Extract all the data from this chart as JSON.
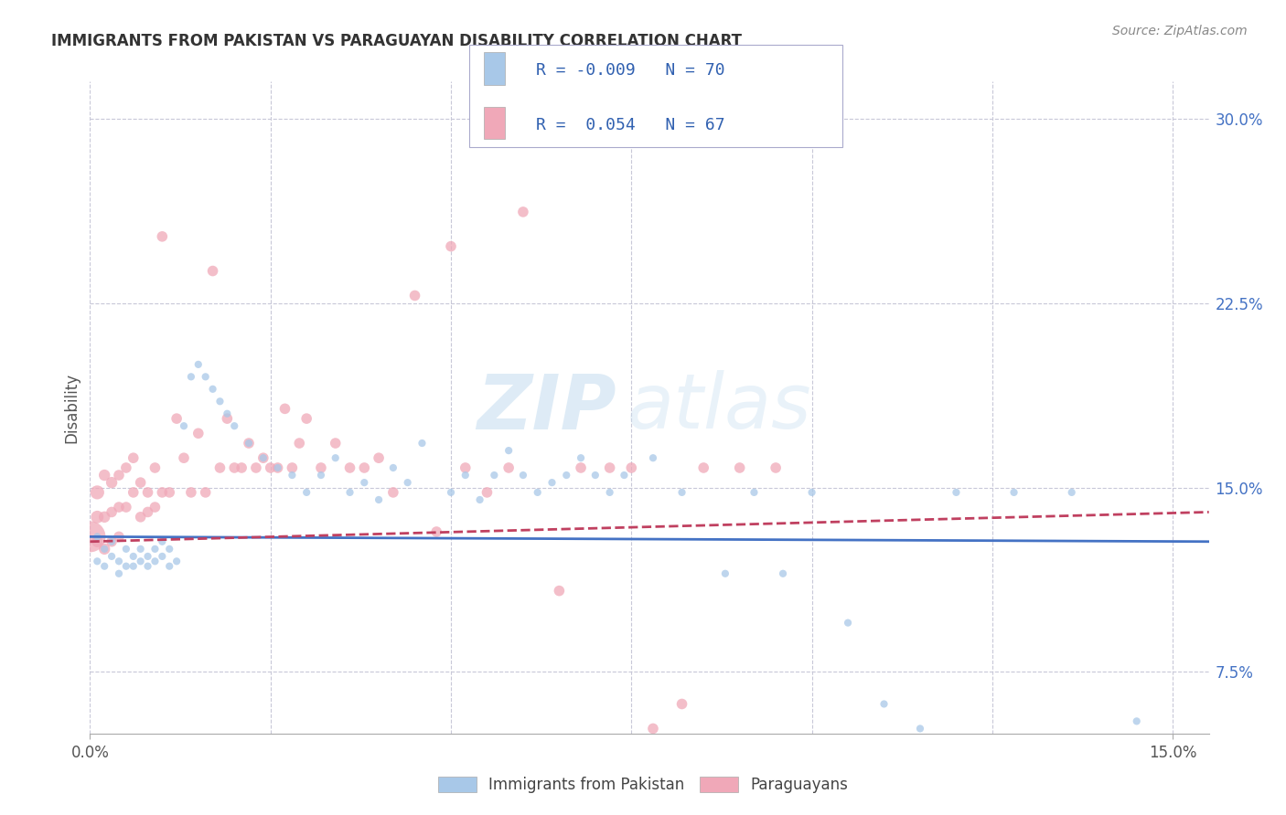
{
  "title": "IMMIGRANTS FROM PAKISTAN VS PARAGUAYAN DISABILITY CORRELATION CHART",
  "source": "Source: ZipAtlas.com",
  "ylabel": "Disability",
  "legend_blue_label": "Immigrants from Pakistan",
  "legend_pink_label": "Paraguayans",
  "r_blue": "-0.009",
  "n_blue": "70",
  "r_pink": "0.054",
  "n_pink": "67",
  "watermark_zip": "ZIP",
  "watermark_atlas": "atlas",
  "blue_color": "#a8c8e8",
  "pink_color": "#f0a8b8",
  "blue_line_color": "#4472c4",
  "pink_line_color": "#c04060",
  "background_color": "#ffffff",
  "grid_color": "#c8c8d8",
  "xlim": [
    0.0,
    0.155
  ],
  "ylim": [
    0.05,
    0.315
  ],
  "yticks": [
    0.075,
    0.15,
    0.225,
    0.3
  ],
  "yticklabels": [
    "7.5%",
    "15.0%",
    "22.5%",
    "30.0%"
  ],
  "xticks": [
    0.0,
    0.15
  ],
  "xticklabels": [
    "0.0%",
    "15.0%"
  ],
  "blue_scatter_x": [
    0.001,
    0.001,
    0.002,
    0.002,
    0.003,
    0.003,
    0.004,
    0.004,
    0.005,
    0.005,
    0.006,
    0.006,
    0.007,
    0.007,
    0.008,
    0.008,
    0.009,
    0.009,
    0.01,
    0.01,
    0.011,
    0.011,
    0.012,
    0.013,
    0.014,
    0.015,
    0.016,
    0.017,
    0.018,
    0.019,
    0.02,
    0.022,
    0.024,
    0.026,
    0.028,
    0.03,
    0.032,
    0.034,
    0.036,
    0.038,
    0.04,
    0.042,
    0.044,
    0.046,
    0.05,
    0.052,
    0.054,
    0.056,
    0.058,
    0.06,
    0.062,
    0.064,
    0.066,
    0.068,
    0.07,
    0.072,
    0.074,
    0.078,
    0.082,
    0.088,
    0.092,
    0.096,
    0.1,
    0.105,
    0.11,
    0.115,
    0.12,
    0.128,
    0.136,
    0.145
  ],
  "blue_scatter_y": [
    0.13,
    0.12,
    0.125,
    0.118,
    0.122,
    0.128,
    0.12,
    0.115,
    0.118,
    0.125,
    0.122,
    0.118,
    0.125,
    0.12,
    0.122,
    0.118,
    0.125,
    0.12,
    0.128,
    0.122,
    0.118,
    0.125,
    0.12,
    0.175,
    0.195,
    0.2,
    0.195,
    0.19,
    0.185,
    0.18,
    0.175,
    0.168,
    0.162,
    0.158,
    0.155,
    0.148,
    0.155,
    0.162,
    0.148,
    0.152,
    0.145,
    0.158,
    0.152,
    0.168,
    0.148,
    0.155,
    0.145,
    0.155,
    0.165,
    0.155,
    0.148,
    0.152,
    0.155,
    0.162,
    0.155,
    0.148,
    0.155,
    0.162,
    0.148,
    0.115,
    0.148,
    0.115,
    0.148,
    0.095,
    0.062,
    0.052,
    0.148,
    0.148,
    0.148,
    0.055
  ],
  "blue_scatter_s": [
    35,
    35,
    35,
    35,
    35,
    35,
    35,
    35,
    35,
    35,
    35,
    35,
    35,
    35,
    35,
    35,
    35,
    35,
    35,
    35,
    35,
    35,
    35,
    35,
    35,
    35,
    35,
    35,
    35,
    35,
    35,
    35,
    35,
    35,
    35,
    35,
    35,
    35,
    35,
    35,
    35,
    35,
    35,
    35,
    35,
    35,
    35,
    35,
    35,
    35,
    35,
    35,
    35,
    35,
    35,
    35,
    35,
    35,
    35,
    35,
    35,
    35,
    35,
    35,
    35,
    35,
    35,
    35,
    35,
    35
  ],
  "pink_scatter_x": [
    0.0,
    0.001,
    0.001,
    0.001,
    0.002,
    0.002,
    0.002,
    0.003,
    0.003,
    0.003,
    0.004,
    0.004,
    0.004,
    0.005,
    0.005,
    0.006,
    0.006,
    0.007,
    0.007,
    0.008,
    0.008,
    0.009,
    0.009,
    0.01,
    0.01,
    0.011,
    0.012,
    0.013,
    0.014,
    0.015,
    0.016,
    0.017,
    0.018,
    0.019,
    0.02,
    0.021,
    0.022,
    0.023,
    0.024,
    0.025,
    0.026,
    0.027,
    0.028,
    0.029,
    0.03,
    0.032,
    0.034,
    0.036,
    0.038,
    0.04,
    0.042,
    0.045,
    0.048,
    0.05,
    0.052,
    0.055,
    0.058,
    0.06,
    0.065,
    0.068,
    0.072,
    0.075,
    0.078,
    0.082,
    0.085,
    0.09,
    0.095
  ],
  "pink_scatter_y": [
    0.13,
    0.148,
    0.138,
    0.128,
    0.155,
    0.138,
    0.125,
    0.152,
    0.14,
    0.128,
    0.155,
    0.142,
    0.13,
    0.158,
    0.142,
    0.162,
    0.148,
    0.152,
    0.138,
    0.148,
    0.14,
    0.158,
    0.142,
    0.252,
    0.148,
    0.148,
    0.178,
    0.162,
    0.148,
    0.172,
    0.148,
    0.238,
    0.158,
    0.178,
    0.158,
    0.158,
    0.168,
    0.158,
    0.162,
    0.158,
    0.158,
    0.182,
    0.158,
    0.168,
    0.178,
    0.158,
    0.168,
    0.158,
    0.158,
    0.162,
    0.148,
    0.228,
    0.132,
    0.248,
    0.158,
    0.148,
    0.158,
    0.262,
    0.108,
    0.158,
    0.158,
    0.158,
    0.052,
    0.062,
    0.158,
    0.158,
    0.158
  ],
  "pink_scatter_s": [
    600,
    120,
    100,
    80,
    80,
    80,
    80,
    80,
    70,
    70,
    70,
    70,
    70,
    70,
    70,
    70,
    70,
    70,
    70,
    70,
    70,
    70,
    70,
    70,
    70,
    70,
    70,
    70,
    70,
    70,
    70,
    70,
    70,
    70,
    70,
    70,
    70,
    70,
    70,
    70,
    70,
    70,
    70,
    70,
    70,
    70,
    70,
    70,
    70,
    70,
    70,
    70,
    70,
    70,
    70,
    70,
    70,
    70,
    70,
    70,
    70,
    70,
    70,
    70,
    70,
    70,
    70
  ],
  "trend_x": [
    0.0,
    0.155
  ],
  "blue_trend_y_start": 0.13,
  "blue_trend_y_end": 0.128,
  "pink_trend_y_start": 0.128,
  "pink_trend_y_end": 0.14
}
